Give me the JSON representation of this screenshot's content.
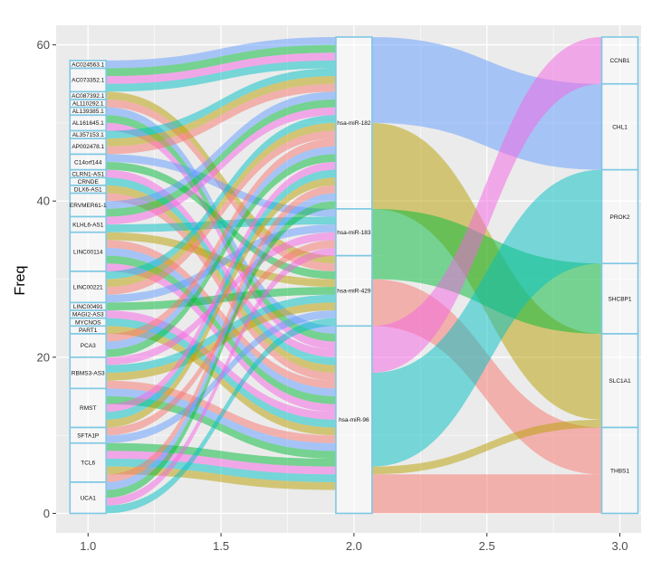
{
  "chart_data": {
    "type": "alluvial",
    "ylabel": "Freq",
    "xlabel": "",
    "xlim": [
      0.88,
      3.08
    ],
    "ylim": [
      -2.5,
      62.5
    ],
    "x_ticks": [
      "1.0",
      "1.5",
      "2.0",
      "2.5",
      "3.0"
    ],
    "x_tick_values": [
      1.0,
      1.5,
      2.0,
      2.5,
      3.0
    ],
    "y_ticks": [
      "0",
      "20",
      "40",
      "60"
    ],
    "y_tick_values": [
      0,
      20,
      40,
      60
    ],
    "axes": [
      {
        "x": 1.0,
        "strata": [
          {
            "label": "AC024563.1",
            "size": 1
          },
          {
            "label": "AC073352.1",
            "size": 3
          },
          {
            "label": "AC087392.1",
            "size": 1
          },
          {
            "label": "AL110292.1",
            "size": 1
          },
          {
            "label": "AL139385.1",
            "size": 1
          },
          {
            "label": "AL161645.1",
            "size": 2
          },
          {
            "label": "AL357153.1",
            "size": 1
          },
          {
            "label": "AP002478.1",
            "size": 2
          },
          {
            "label": "C14orf144",
            "size": 2
          },
          {
            "label": "CLRN1-AS1",
            "size": 1
          },
          {
            "label": "CRNDE",
            "size": 1
          },
          {
            "label": "DLX6-AS1",
            "size": 1
          },
          {
            "label": "ERVMER61-1",
            "size": 3
          },
          {
            "label": "KLHL6-AS1",
            "size": 2
          },
          {
            "label": "LINC00114",
            "size": 5
          },
          {
            "label": "LINC00221",
            "size": 4
          },
          {
            "label": "LINC00491",
            "size": 1
          },
          {
            "label": "MAGI2-AS3",
            "size": 1
          },
          {
            "label": "MYCNOS",
            "size": 1
          },
          {
            "label": "PART1",
            "size": 1
          },
          {
            "label": "PCA3",
            "size": 3
          },
          {
            "label": "RBMS3-AS3",
            "size": 4
          },
          {
            "label": "RMST",
            "size": 5
          },
          {
            "label": "SFTA1P",
            "size": 2
          },
          {
            "label": "TCL6",
            "size": 5
          },
          {
            "label": "UCA1",
            "size": 4
          }
        ]
      },
      {
        "x": 2.0,
        "strata": [
          {
            "label": "hsa-miR-182",
            "size": 22
          },
          {
            "label": "hsa-miR-183",
            "size": 6
          },
          {
            "label": "hsa-miR-429",
            "size": 9
          },
          {
            "label": "hsa-miR-96",
            "size": 24
          }
        ]
      },
      {
        "x": 3.0,
        "strata": [
          {
            "label": "CCNB1",
            "size": 6
          },
          {
            "label": "CHL1",
            "size": 11
          },
          {
            "label": "PROK2",
            "size": 12
          },
          {
            "label": "SHCBP1",
            "size": 9
          },
          {
            "label": "SLC1A1",
            "size": 12
          },
          {
            "label": "THBS1",
            "size": 11
          }
        ]
      }
    ],
    "flows": [
      {
        "from": "hsa-miR-182",
        "to": "CHL1",
        "size": 11
      },
      {
        "from": "hsa-miR-182",
        "to": "SLC1A1",
        "size": 11
      },
      {
        "from": "hsa-miR-183",
        "to": "SHCBP1",
        "size": 6
      },
      {
        "from": "hsa-miR-429",
        "to": "SHCBP1",
        "size": 3
      },
      {
        "from": "hsa-miR-429",
        "to": "THBS1",
        "size": 6
      },
      {
        "from": "hsa-miR-96",
        "to": "CCNB1",
        "size": 6
      },
      {
        "from": "hsa-miR-96",
        "to": "PROK2",
        "size": 12
      },
      {
        "from": "hsa-miR-96",
        "to": "SLC1A1",
        "size": 1
      },
      {
        "from": "hsa-miR-96",
        "to": "THBS1",
        "size": 5
      }
    ],
    "flow_colors": {
      "hsa-miR-182": "#619CFF",
      "hsa-miR-183": "#00BFC4",
      "hsa-miR-429": "#F8766D",
      "hsa-miR-96": "#B79F00",
      "CCNB1": "#F564E3",
      "CHL1": "#619CFF",
      "PROK2": "#00BFC4",
      "SHCBP1": "#00BA38",
      "SLC1A1": "#B79F00",
      "THBS1": "#F8766D"
    },
    "left_flow_palette": [
      "#619CFF",
      "#00BA38",
      "#F564E3",
      "#00BFC4",
      "#B79F00",
      "#F8766D"
    ],
    "box_stroke": "#7EC8E3",
    "panel_bg": "#EBEBEB",
    "grid_color": "#FFFFFF"
  }
}
